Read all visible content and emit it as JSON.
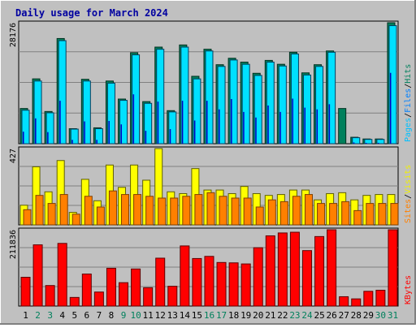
{
  "title": "Daily usage for March 2024",
  "colors": {
    "frame_bg": "#C0C0C0",
    "plot_bg": "#C0C0C0",
    "title": "#0000A0",
    "hits": "#00805C",
    "hits_face": "#008060",
    "files": "#0080FF",
    "files_face": "#00E0FF",
    "pages": "#00C0FF",
    "sites": "#FF8000",
    "visits": "#F0F000",
    "visits_face": "#FFFF00",
    "kbytes": "#FF0000",
    "weekend": "#00805C",
    "weekday": "#000000"
  },
  "chart_data": [
    {
      "type": "bar",
      "panel": "requests",
      "ylim": [
        0,
        28176
      ],
      "y_max_label": "28176",
      "legend": [
        {
          "name": "Pages",
          "color_key": "pages"
        },
        {
          "name": "/",
          "color_key": "weekday"
        },
        {
          "name": "Files",
          "color_key": "files"
        },
        {
          "name": "/",
          "color_key": "weekday"
        },
        {
          "name": "Hits",
          "color_key": "hits"
        }
      ],
      "categories": [
        "1",
        "2",
        "3",
        "4",
        "5",
        "6",
        "7",
        "8",
        "9",
        "10",
        "11",
        "12",
        "13",
        "14",
        "15",
        "16",
        "17",
        "18",
        "19",
        "20",
        "21",
        "22",
        "23",
        "24",
        "25",
        "26",
        "27",
        "28",
        "29",
        "30",
        "31"
      ],
      "weekend": [
        false,
        true,
        true,
        false,
        false,
        false,
        false,
        false,
        true,
        true,
        false,
        false,
        false,
        false,
        false,
        true,
        true,
        false,
        false,
        false,
        false,
        false,
        true,
        true,
        false,
        false,
        false,
        false,
        false,
        true,
        true
      ],
      "series": [
        {
          "name": "Hits",
          "values": [
            8200,
            15100,
            7500,
            24500,
            3500,
            15000,
            3700,
            14600,
            10400,
            21200,
            9800,
            22500,
            7700,
            23000,
            15700,
            22000,
            18400,
            19900,
            19000,
            16400,
            19400,
            18500,
            21300,
            16500,
            18400,
            21600,
            8200,
            1500,
            1100,
            1100,
            28176
          ]
        },
        {
          "name": "Files",
          "values": [
            7800,
            14600,
            7200,
            24000,
            3400,
            14600,
            3500,
            14100,
            10100,
            20700,
            9400,
            22000,
            7400,
            22500,
            15100,
            21600,
            18000,
            19500,
            18500,
            15900,
            19000,
            18100,
            20900,
            16000,
            18000,
            21300,
            0,
            1400,
            1000,
            1000,
            27500
          ]
        },
        {
          "name": "Pages",
          "values": [
            2800,
            5900,
            2700,
            10000,
            900,
            5200,
            900,
            5300,
            4500,
            11500,
            3000,
            9800,
            3400,
            10000,
            5400,
            10000,
            8000,
            10400,
            7400,
            6100,
            8900,
            7400,
            10500,
            8400,
            8000,
            9200,
            0,
            300,
            200,
            200,
            16500
          ]
        }
      ]
    },
    {
      "type": "bar",
      "panel": "visitors",
      "ylim": [
        0,
        427
      ],
      "y_max_label": "427",
      "legend": [
        {
          "name": "Sites",
          "color_key": "sites"
        },
        {
          "name": "/",
          "color_key": "weekday"
        },
        {
          "name": "Visits",
          "color_key": "visits"
        }
      ],
      "categories": [
        "1",
        "2",
        "3",
        "4",
        "5",
        "6",
        "7",
        "8",
        "9",
        "10",
        "11",
        "12",
        "13",
        "14",
        "15",
        "16",
        "17",
        "18",
        "19",
        "20",
        "21",
        "22",
        "23",
        "24",
        "25",
        "26",
        "27",
        "28",
        "29",
        "30",
        "31"
      ],
      "series": [
        {
          "name": "Visits",
          "values": [
            110,
            325,
            185,
            360,
            70,
            255,
            135,
            335,
            210,
            335,
            250,
            427,
            185,
            175,
            315,
            195,
            195,
            175,
            215,
            175,
            165,
            170,
            195,
            195,
            140,
            175,
            180,
            140,
            165,
            170,
            170
          ]
        },
        {
          "name": "Sites",
          "values": [
            85,
            165,
            120,
            170,
            60,
            160,
            100,
            190,
            170,
            170,
            160,
            150,
            150,
            160,
            170,
            180,
            160,
            150,
            150,
            100,
            140,
            130,
            160,
            170,
            120,
            120,
            130,
            80,
            120,
            120,
            120
          ]
        }
      ]
    },
    {
      "type": "bar",
      "panel": "kbytes",
      "ylim": [
        0,
        211836
      ],
      "y_max_label": "211836",
      "legend": [
        {
          "name": "KBytes",
          "color_key": "kbytes"
        }
      ],
      "categories": [
        "1",
        "2",
        "3",
        "4",
        "5",
        "6",
        "7",
        "8",
        "9",
        "10",
        "11",
        "12",
        "13",
        "14",
        "15",
        "16",
        "17",
        "18",
        "19",
        "20",
        "21",
        "22",
        "23",
        "24",
        "25",
        "26",
        "27",
        "28",
        "29",
        "30",
        "31"
      ],
      "series": [
        {
          "name": "KBytes",
          "values": [
            80000,
            170000,
            57000,
            174000,
            24000,
            89000,
            39000,
            105000,
            65000,
            103000,
            51000,
            133000,
            55000,
            167000,
            132000,
            138000,
            121000,
            120000,
            117000,
            162000,
            195000,
            203000,
            205000,
            154000,
            193000,
            211836,
            26000,
            20000,
            41000,
            44000,
            211836
          ]
        }
      ]
    }
  ]
}
